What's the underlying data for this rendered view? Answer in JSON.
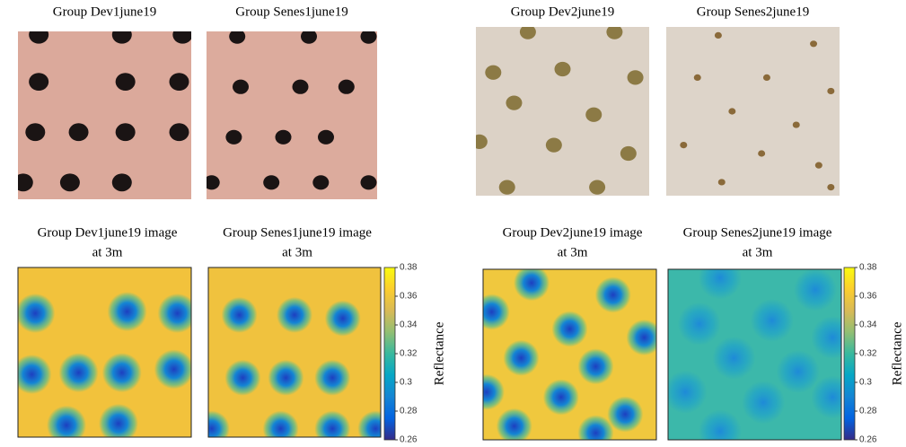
{
  "photos": [
    {
      "title": "Group Dev1june19"
    },
    {
      "title": "Group Senes1june19"
    },
    {
      "title": "Group Dev2june19"
    },
    {
      "title": "Group Senes2june19"
    }
  ],
  "heatmaps": [
    {
      "title": [
        "Group Dev1june19 image",
        "at 3m"
      ]
    },
    {
      "title": [
        "Group Senes1june19 image",
        "at 3m"
      ]
    },
    {
      "title": [
        "Group Dev2june19 image",
        "at 3m"
      ]
    },
    {
      "title": [
        "Group Senes2june19 image",
        "at 3m"
      ]
    }
  ],
  "colorbars": [
    {
      "label": "Reflectance",
      "ylim": [
        0.26,
        0.38
      ],
      "ticks": [
        0.26,
        0.28,
        0.3,
        0.32,
        0.34,
        0.36,
        0.38
      ]
    },
    {
      "label": "Reflectance",
      "ylim": [
        0.26,
        0.38
      ],
      "ticks": [
        0.26,
        0.28,
        0.3,
        0.32,
        0.34,
        0.36,
        0.38
      ]
    }
  ]
}
